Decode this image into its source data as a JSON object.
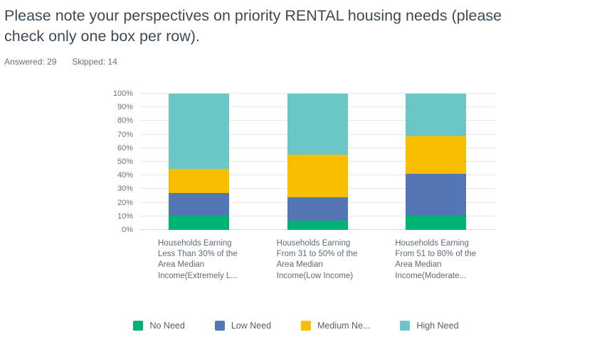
{
  "header": {
    "title": "Please note your perspectives on priority RENTAL housing needs (please\ncheck only one box per row).",
    "answered_label": "Answered: 29",
    "skipped_label": "Skipped: 14"
  },
  "chart_data": {
    "type": "bar",
    "variant": "stacked-percent-column",
    "title": "Please note your perspectives on priority RENTAL housing needs (please check only one box per row).",
    "categories": [
      [
        "Households Earning",
        "Less Than 30% of the",
        "Area Median",
        "Income(Extremely L..."
      ],
      [
        "Households Earning",
        "From 31 to 50% of the",
        "Area Median",
        "Income(Low Income)"
      ],
      [
        "Households Earning",
        "From 51 to 80% of the",
        "Area Median",
        "Income(Moderate..."
      ]
    ],
    "series": [
      {
        "name": "No Need",
        "color": "#00b274",
        "values": [
          11,
          7,
          11
        ]
      },
      {
        "name": "Low Need",
        "color": "#5377b5",
        "values": [
          16,
          17,
          30
        ]
      },
      {
        "name": "Medium Ne...",
        "color": "#f9be00",
        "values": [
          18,
          31,
          28
        ]
      },
      {
        "name": "High Need",
        "color": "#6bc7c5",
        "values": [
          55,
          45,
          31
        ]
      }
    ],
    "yticks": [
      "0%",
      "10%",
      "20%",
      "30%",
      "40%",
      "50%",
      "60%",
      "70%",
      "80%",
      "90%",
      "100%"
    ],
    "ylim": [
      0,
      100
    ],
    "y_unit": "%",
    "grid": true,
    "legend_position": "bottom",
    "legend_labels": [
      "No Need",
      "Low Need",
      "Medium Ne...",
      "High Need"
    ]
  }
}
